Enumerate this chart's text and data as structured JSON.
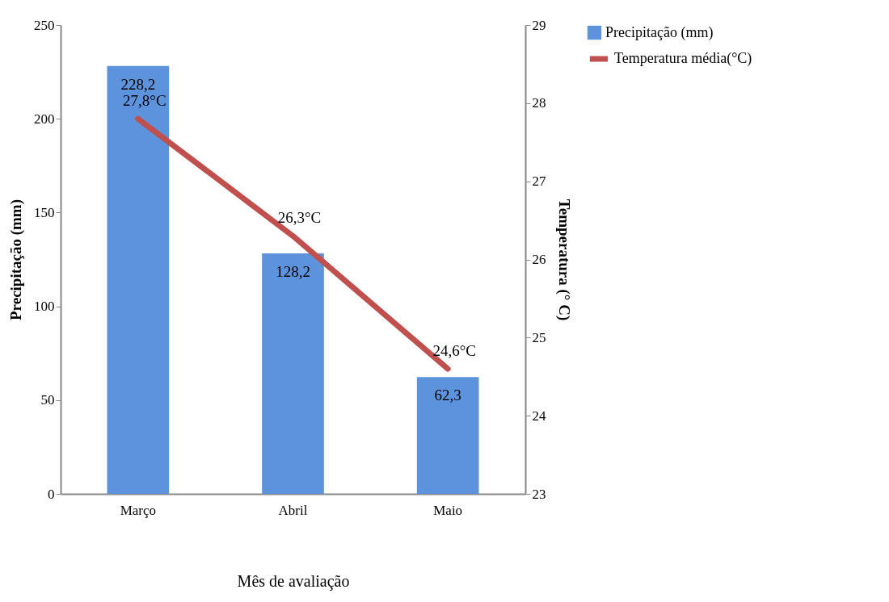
{
  "chart_data": {
    "type": "bar",
    "categories": [
      "Março",
      "Abril",
      "Maio"
    ],
    "xlabel": "Mês de avaliação",
    "ylabel": "Precipitação (mm)",
    "y2label": "Temperatura  (° C)",
    "ylim": [
      0,
      250
    ],
    "yticks": [
      0,
      50,
      100,
      150,
      200,
      250
    ],
    "y2lim": [
      23,
      29
    ],
    "y2ticks": [
      23,
      24,
      25,
      26,
      27,
      28,
      29
    ],
    "grid": false,
    "legend": "right",
    "series": [
      {
        "name": "Precipitação (mm)",
        "color": "#5d93dc",
        "values": [
          228.2,
          128.2,
          62.3
        ],
        "value_labels": [
          "228,2",
          "128,2",
          "62,3"
        ]
      },
      {
        "name": "Temperatura média(°C)",
        "type": "line",
        "axis": "y2",
        "color": "#c0504d",
        "values": [
          27.8,
          26.3,
          24.6
        ],
        "value_labels": [
          "27,8°C",
          "26,3°C",
          "24,6°C"
        ]
      }
    ]
  }
}
